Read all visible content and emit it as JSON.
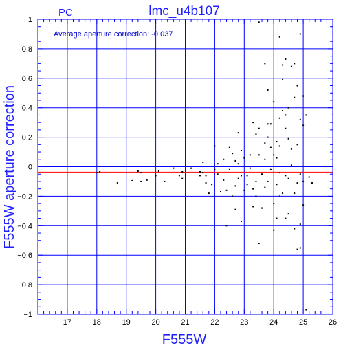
{
  "colors": {
    "axis": "#0000ff",
    "grid": "#0000ff",
    "mean_line": "#ff0000",
    "points": "#000000",
    "title_text": "#2020ff"
  },
  "chart_data": {
    "type": "scatter",
    "title": "lmc_u4b107",
    "corner_label": "PC",
    "annotation": "Average aperture correction: -0.037",
    "xlabel": "F555W",
    "ylabel": "F555W aperture correction",
    "xlim": [
      16,
      26
    ],
    "ylim": [
      -1,
      1
    ],
    "xticks": [
      17,
      18,
      19,
      20,
      21,
      22,
      23,
      24,
      25,
      26
    ],
    "yticks": [
      -1,
      -0.8,
      -0.6,
      -0.4,
      -0.2,
      0,
      0.2,
      0.4,
      0.6,
      0.8,
      1
    ],
    "grid": true,
    "reference_line": -0.037,
    "points": [
      [
        18.0,
        -0.04
      ],
      [
        18.1,
        -0.035
      ],
      [
        18.7,
        -0.11
      ],
      [
        19.2,
        -0.095
      ],
      [
        19.4,
        -0.03
      ],
      [
        19.5,
        -0.04
      ],
      [
        19.5,
        -0.1
      ],
      [
        19.7,
        -0.09
      ],
      [
        20.0,
        -0.06
      ],
      [
        20.1,
        -0.03
      ],
      [
        20.3,
        -0.1
      ],
      [
        20.6,
        -0.01
      ],
      [
        20.8,
        -0.06
      ],
      [
        20.9,
        -0.08
      ],
      [
        20.9,
        -0.035
      ],
      [
        21.2,
        -0.01
      ],
      [
        21.5,
        -0.035
      ],
      [
        21.5,
        -0.06
      ],
      [
        21.6,
        0.03
      ],
      [
        21.6,
        -0.04
      ],
      [
        21.7,
        -0.06
      ],
      [
        21.7,
        -0.11
      ],
      [
        21.8,
        -0.18
      ],
      [
        21.9,
        -0.12
      ],
      [
        22.0,
        -0.02
      ],
      [
        22.0,
        0.14
      ],
      [
        22.1,
        0.02
      ],
      [
        22.1,
        -0.05
      ],
      [
        22.2,
        -0.17
      ],
      [
        22.3,
        -0.09
      ],
      [
        22.3,
        0.05
      ],
      [
        22.4,
        -0.16
      ],
      [
        22.4,
        -0.4
      ],
      [
        22.5,
        0.13
      ],
      [
        22.5,
        -0.02
      ],
      [
        22.6,
        0.09
      ],
      [
        22.6,
        -0.2
      ],
      [
        22.7,
        0.04
      ],
      [
        22.7,
        -0.13
      ],
      [
        22.7,
        -0.29
      ],
      [
        22.8,
        0.02
      ],
      [
        22.8,
        -0.08
      ],
      [
        22.8,
        0.23
      ],
      [
        22.9,
        -0.37
      ],
      [
        22.9,
        0.11
      ],
      [
        22.9,
        -0.06
      ],
      [
        23.0,
        0.06
      ],
      [
        23.0,
        -0.16
      ],
      [
        23.1,
        -0.12
      ],
      [
        23.1,
        -0.06
      ],
      [
        23.2,
        0.08
      ],
      [
        23.2,
        -0.01
      ],
      [
        23.3,
        0.3
      ],
      [
        23.3,
        -0.15
      ],
      [
        23.3,
        -0.27
      ],
      [
        23.4,
        0.22
      ],
      [
        23.4,
        -0.1
      ],
      [
        23.4,
        -0.2
      ],
      [
        23.5,
        0.26
      ],
      [
        23.5,
        0.98
      ],
      [
        23.5,
        0.08
      ],
      [
        23.5,
        -0.52
      ],
      [
        23.6,
        -0.05
      ],
      [
        23.6,
        -0.28
      ],
      [
        23.7,
        0.7
      ],
      [
        23.7,
        0.16
      ],
      [
        23.7,
        -0.14
      ],
      [
        23.7,
        0.05
      ],
      [
        23.8,
        0.52
      ],
      [
        23.8,
        0.29
      ],
      [
        23.8,
        0.2
      ],
      [
        23.8,
        -0.1
      ],
      [
        23.9,
        0.29
      ],
      [
        23.9,
        0.13
      ],
      [
        24.0,
        0.44
      ],
      [
        24.0,
        0.08
      ],
      [
        24.0,
        -0.25
      ],
      [
        24.0,
        -0.43
      ],
      [
        24.1,
        0.17
      ],
      [
        24.1,
        0.06
      ],
      [
        24.1,
        -0.12
      ],
      [
        24.1,
        -0.35
      ],
      [
        24.2,
        0.88
      ],
      [
        24.2,
        0.33
      ],
      [
        24.2,
        0.14
      ],
      [
        24.2,
        -0.04
      ],
      [
        24.3,
        0.38
      ],
      [
        24.3,
        0.59
      ],
      [
        24.3,
        -0.18
      ],
      [
        24.4,
        0.73
      ],
      [
        24.4,
        0.35
      ],
      [
        24.4,
        0.26
      ],
      [
        24.4,
        -0.06
      ],
      [
        24.4,
        -0.35
      ],
      [
        24.5,
        0.19
      ],
      [
        24.5,
        -0.08
      ],
      [
        24.5,
        -0.32
      ],
      [
        24.6,
        0.12
      ],
      [
        24.6,
        0.01
      ],
      [
        24.7,
        0.7
      ],
      [
        24.7,
        0.47
      ],
      [
        24.7,
        -0.42
      ],
      [
        24.7,
        -0.18
      ],
      [
        24.8,
        0.55
      ],
      [
        24.8,
        0.15
      ],
      [
        24.8,
        -0.11
      ],
      [
        24.8,
        -0.56
      ],
      [
        24.9,
        0.32
      ],
      [
        24.9,
        -0.05
      ],
      [
        24.9,
        -0.55
      ],
      [
        24.9,
        0.9
      ],
      [
        24.9,
        -0.39
      ],
      [
        25.0,
        0.48
      ],
      [
        25.0,
        0.28
      ],
      [
        25.0,
        -0.1
      ],
      [
        25.0,
        -0.26
      ],
      [
        25.1,
        0.35
      ],
      [
        25.1,
        -0.97
      ],
      [
        25.2,
        -0.07
      ],
      [
        25.3,
        -0.11
      ],
      [
        24.3,
        0.69
      ],
      [
        24.6,
        0.68
      ],
      [
        23.9,
        -0.02
      ],
      [
        24.2,
        -0.2
      ],
      [
        24.5,
        0.4
      ]
    ]
  }
}
